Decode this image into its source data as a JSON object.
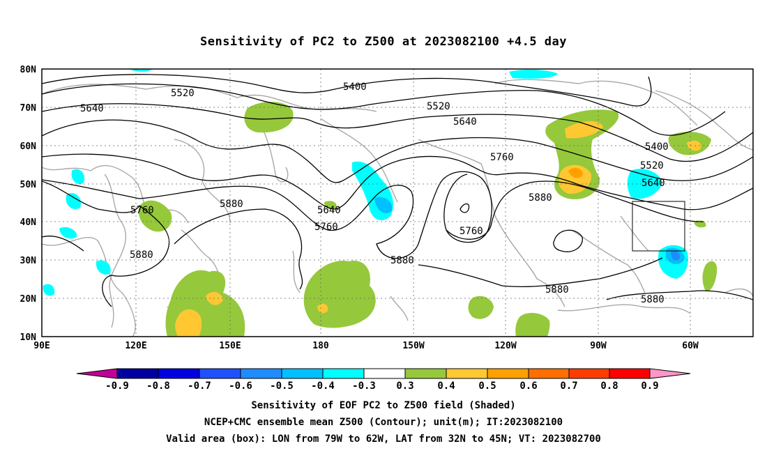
{
  "title": "Sensitivity of PC2 to Z500 at 2023082100 +4.5 day",
  "map": {
    "lat_labels": [
      "80N",
      "70N",
      "60N",
      "50N",
      "40N",
      "30N",
      "20N",
      "10N"
    ],
    "lon_labels": [
      "90E",
      "120E",
      "150E",
      "180",
      "150W",
      "120W",
      "90W",
      "60W"
    ],
    "contour_labels": [
      "5400",
      "5400",
      "5520",
      "5520",
      "5520",
      "5640",
      "5640",
      "5640",
      "5640",
      "5760",
      "5760",
      "5760",
      "5760",
      "5880",
      "5880",
      "5880",
      "5880",
      "5880",
      "5880"
    ],
    "valid_box": {
      "lon_range": "79W-62W",
      "lat_range": "32N-45N"
    }
  },
  "colorbar": {
    "labels": [
      "-0.9",
      "-0.8",
      "-0.7",
      "-0.6",
      "-0.5",
      "-0.4",
      "-0.3",
      "0.3",
      "0.4",
      "0.5",
      "0.6",
      "0.7",
      "0.8",
      "0.9"
    ],
    "colors": [
      "#0000a0",
      "#0000e0",
      "#1e50ff",
      "#1e8cff",
      "#00c0ff",
      "#00ffff",
      "#ffffff",
      "#96c83c",
      "#ffc832",
      "#ffa000",
      "#ff6e00",
      "#ff3c00",
      "#ff0000"
    ],
    "low_arrow_color": "#c00096",
    "high_arrow_color": "#ff96c8"
  },
  "footer": {
    "line1": "Sensitivity of EOF PC2 to Z500 field (Shaded)",
    "line2": "NCEP+CMC ensemble mean Z500 (Contour); unit(m); IT:2023082100",
    "line3": "Valid area (box): LON from 79W to 62W, LAT from 32N to 45N; VT: 2023082700"
  }
}
